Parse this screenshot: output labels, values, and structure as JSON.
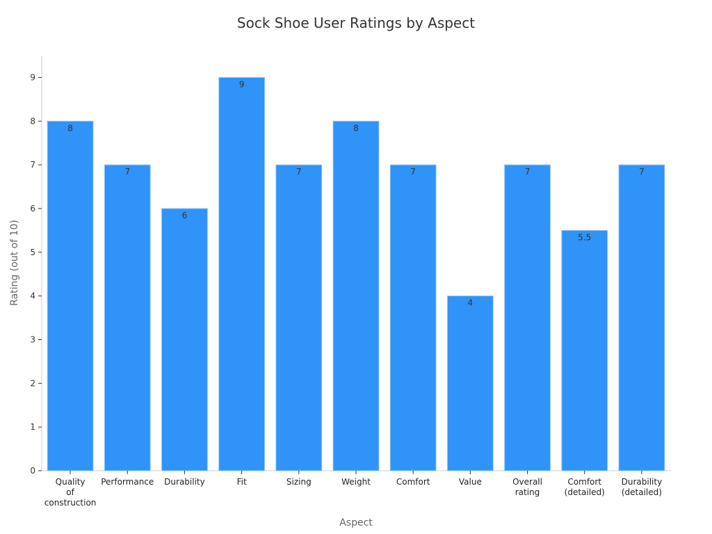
{
  "chart_data": {
    "type": "bar",
    "title": "Sock Shoe User Ratings by Aspect",
    "xlabel": "Aspect",
    "ylabel": "Rating (out of 10)",
    "categories": [
      "Quality of construction",
      "Performance",
      "Durability",
      "Fit",
      "Sizing",
      "Weight",
      "Comfort",
      "Value",
      "Overall rating",
      "Comfort (detailed)",
      "Durability (detailed)"
    ],
    "category_lines": [
      [
        "Quality",
        "of",
        "construction"
      ],
      [
        "Performance"
      ],
      [
        "Durability"
      ],
      [
        "Fit"
      ],
      [
        "Sizing"
      ],
      [
        "Weight"
      ],
      [
        "Comfort"
      ],
      [
        "Value"
      ],
      [
        "Overall",
        "rating"
      ],
      [
        "Comfort",
        "(detailed)"
      ],
      [
        "Durability",
        "(detailed)"
      ]
    ],
    "values": [
      8,
      7,
      6,
      9,
      7,
      8,
      7,
      4,
      7,
      5.5,
      7
    ],
    "ylim": [
      0,
      9.5
    ],
    "yticks": [
      0,
      1,
      2,
      3,
      4,
      5,
      6,
      7,
      8,
      9
    ],
    "grid": false,
    "colors": {
      "bar": "#2f93f8",
      "bar_edge": "#8cc3f7",
      "text": "#333333"
    }
  }
}
